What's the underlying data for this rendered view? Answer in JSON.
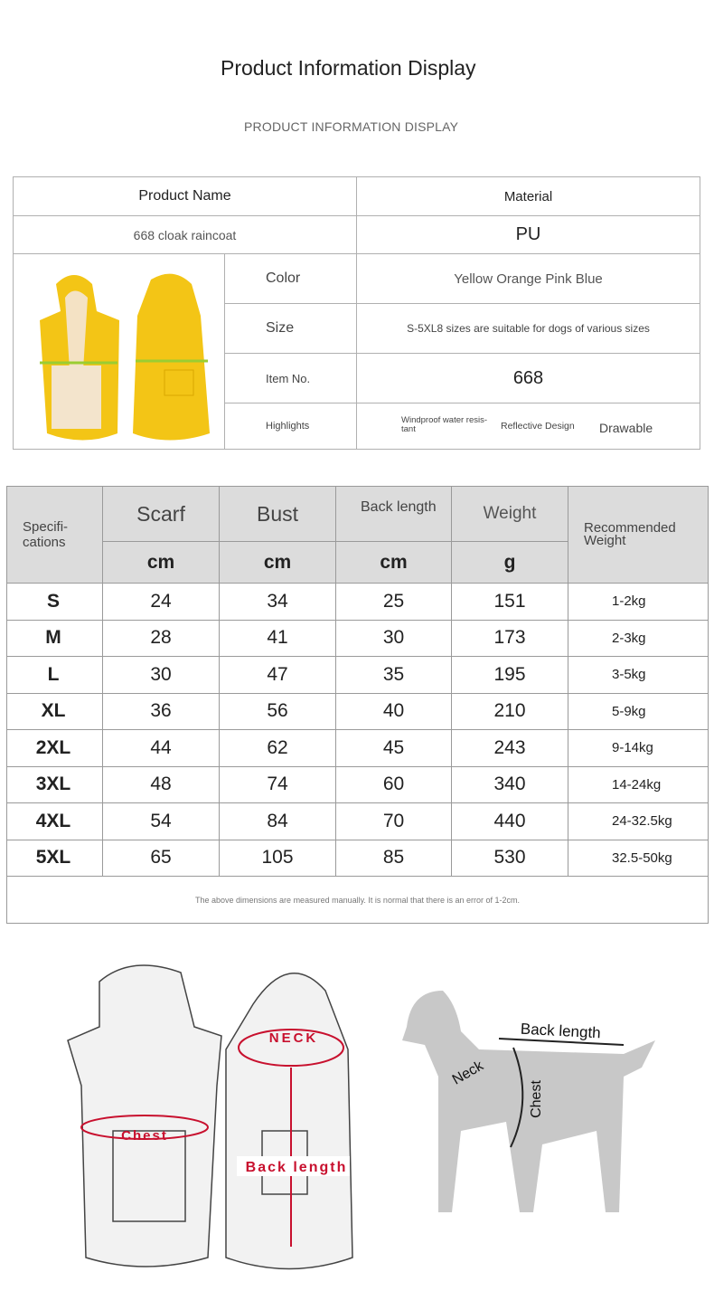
{
  "header": {
    "title": "Product Information Display",
    "subtitle": "PRODUCT INFORMATION DISPLAY"
  },
  "info": {
    "product_name_label": "Product Name",
    "material_label": "Material",
    "product_name": "668 cloak raincoat",
    "material": "PU",
    "color_label": "Color",
    "color": "Yellow Orange Pink Blue",
    "size_label": "Size",
    "size": "S-5XL8 sizes are suitable for dogs of various sizes",
    "item_label": "Item No.",
    "item": "668",
    "highlights_label": "Highlights",
    "highlights": [
      "Windproof water resis-tant",
      "Reflective Design",
      "Drawable"
    ],
    "raincoat_color": "#f3c516"
  },
  "sizes": {
    "headers": {
      "spec": "Specifi-cations",
      "scarf": "Scarf",
      "bust": "Bust",
      "back": "Back length",
      "weight": "Weight",
      "recommended": "Recommended Weight",
      "u1": "cm",
      "u2": "cm",
      "u3": "cm",
      "u4": "g"
    },
    "rows": [
      {
        "size": "S",
        "scarf": "24",
        "bust": "34",
        "back": "25",
        "weight": "151",
        "rec": "1-2kg"
      },
      {
        "size": "M",
        "scarf": "28",
        "bust": "41",
        "back": "30",
        "weight": "173",
        "rec": "2-3kg"
      },
      {
        "size": "L",
        "scarf": "30",
        "bust": "47",
        "back": "35",
        "weight": "195",
        "rec": "3-5kg"
      },
      {
        "size": "XL",
        "scarf": "36",
        "bust": "56",
        "back": "40",
        "weight": "210",
        "rec": "5-9kg"
      },
      {
        "size": "2XL",
        "scarf": "44",
        "bust": "62",
        "back": "45",
        "weight": "243",
        "rec": "9-14kg"
      },
      {
        "size": "3XL",
        "scarf": "48",
        "bust": "74",
        "back": "60",
        "weight": "340",
        "rec": "14-24kg"
      },
      {
        "size": "4XL",
        "scarf": "54",
        "bust": "84",
        "back": "70",
        "weight": "440",
        "rec": "24-32.5kg"
      },
      {
        "size": "5XL",
        "scarf": "65",
        "bust": "105",
        "back": "85",
        "weight": "530",
        "rec": "32.5-50kg"
      }
    ],
    "note": "The above dimensions are measured manually. It is normal that there is an error of 1-2cm."
  },
  "diagram": {
    "neck": "NECK",
    "chest": "Chest",
    "back_length": "Back length",
    "dog_back": "Back length",
    "dog_neck": "Neck",
    "dog_chest": "Chest",
    "accent": "#c8102e"
  }
}
